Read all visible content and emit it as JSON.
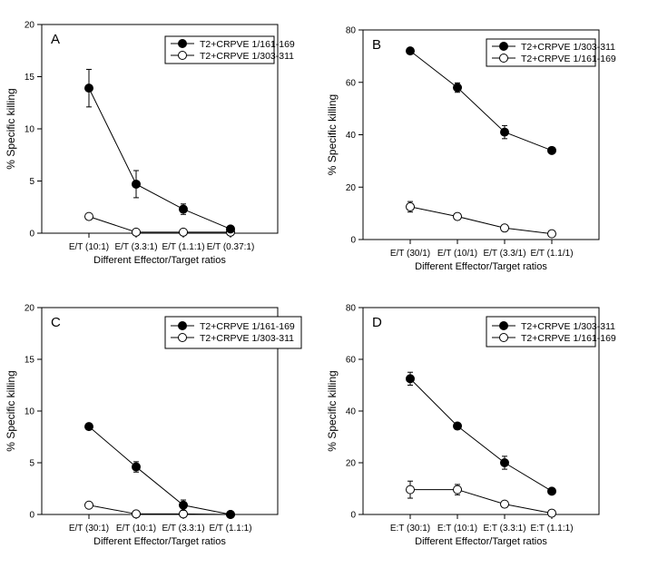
{
  "chart_data": [
    {
      "type": "line",
      "panel": "A",
      "xlabel": "Different Effector/Target ratios",
      "ylabel": "% Specific killing",
      "ylim": [
        0,
        20
      ],
      "yticks": [
        0,
        5,
        10,
        15,
        20
      ],
      "categories": [
        "E/T (10:1)",
        "E/T (3.3:1)",
        "E/T (1.1:1)",
        "E/T (0.37:1)"
      ],
      "legend_position": "top-right",
      "series": [
        {
          "name": "T2+CRPVE 1/161-169",
          "marker": "filled",
          "values": [
            13.9,
            4.7,
            2.3,
            0.4
          ],
          "errors": [
            1.8,
            1.3,
            0.5,
            0.1
          ]
        },
        {
          "name": "T2+CRPVE 1/303-311",
          "marker": "open",
          "values": [
            1.6,
            0.1,
            0.1,
            0.1
          ],
          "errors": [
            0,
            0,
            0,
            0
          ]
        }
      ]
    },
    {
      "type": "line",
      "panel": "B",
      "xlabel": "Different Effector/Target ratios",
      "ylabel": "% Specific killing",
      "ylim": [
        0,
        80
      ],
      "yticks": [
        0,
        20,
        40,
        60,
        80
      ],
      "categories": [
        "E/T (30/1)",
        "E/T (10/1)",
        "E/T (3.3/1)",
        "E/T (1.1/1)"
      ],
      "legend_position": "top-right",
      "series": [
        {
          "name": "T2+CRPVE 1/303-311",
          "marker": "filled",
          "values": [
            72,
            58,
            41,
            34
          ],
          "errors": [
            1,
            1.8,
            2.5,
            0.8
          ]
        },
        {
          "name": "T2+CRPVE 1/161-169",
          "marker": "open",
          "values": [
            12.5,
            8.8,
            4.4,
            2.2
          ],
          "errors": [
            2,
            0.5,
            0.5,
            0.4
          ]
        }
      ]
    },
    {
      "type": "line",
      "panel": "C",
      "xlabel": "Different Effector/Target ratios",
      "ylabel": "% Specific killing",
      "ylim": [
        0,
        20
      ],
      "yticks": [
        0,
        5,
        10,
        15,
        20
      ],
      "categories": [
        "E/T (30:1)",
        "E/T (10:1)",
        "E/T (3.3:1)",
        "E/T (1.1:1)"
      ],
      "legend_position": "top-right",
      "series": [
        {
          "name": "T2+CRPVE 1/161-169",
          "marker": "filled",
          "values": [
            8.5,
            4.6,
            0.9,
            0.0
          ],
          "errors": [
            0.2,
            0.5,
            0.5,
            0.05
          ]
        },
        {
          "name": "T2+CRPVE 1/303-311",
          "marker": "open",
          "values": [
            0.9,
            0.05,
            0.05,
            0.0
          ],
          "errors": [
            0,
            0,
            0,
            0
          ]
        }
      ]
    },
    {
      "type": "line",
      "panel": "D",
      "xlabel": "Different Effector/Target ratios",
      "ylabel": "% Specific killing",
      "ylim": [
        0,
        80
      ],
      "yticks": [
        0,
        20,
        40,
        60,
        80
      ],
      "categories": [
        "E:T (30:1)",
        "E:T (10:1)",
        "E:T (3.3:1)",
        "E:T (1.1:1)"
      ],
      "legend_position": "top-right",
      "series": [
        {
          "name": "T2+CRPVE 1/303-311",
          "marker": "filled",
          "values": [
            52.5,
            34.2,
            20,
            9
          ],
          "errors": [
            2.5,
            1,
            2.5,
            0.8
          ]
        },
        {
          "name": "T2+CRPVE 1/161-169",
          "marker": "open",
          "values": [
            9.6,
            9.6,
            4,
            0.5
          ],
          "errors": [
            3.3,
            2,
            0.5,
            0.2
          ]
        }
      ]
    }
  ]
}
